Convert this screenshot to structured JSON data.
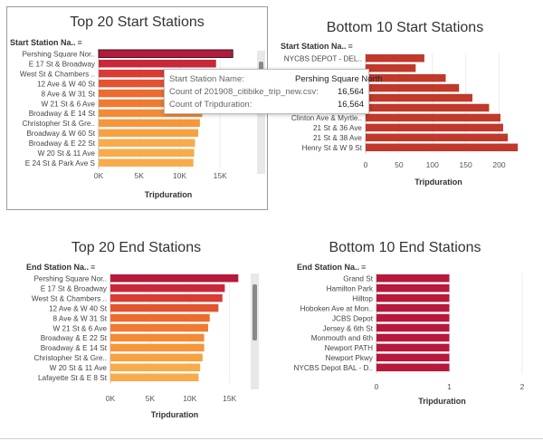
{
  "colors": {
    "ramp": [
      "#b8183c",
      "#c9283b",
      "#d83c34",
      "#e4532f",
      "#ec6b2f",
      "#f07a30",
      "#f38a36",
      "#f5963c",
      "#f7a143",
      "#f8ab4b"
    ],
    "crimson": "#b8183c",
    "brick": "#c0392b",
    "highlight_stroke": "#222222"
  },
  "panels": [
    {
      "id": "top-start",
      "title": "Top 20 Start Stations",
      "header_label": "Start Station Na..",
      "sort_icon": "sort-descending-icon",
      "selected": true,
      "tooltip": {
        "rows": [
          {
            "label": "Start Station Name:",
            "value": "Pershing Square North"
          },
          {
            "label": "Count of 201908_citibike_trip_new.csv:",
            "value": "16,564"
          },
          {
            "label": "Count of Tripduration:",
            "value": "16,564"
          }
        ]
      },
      "chart_data": {
        "type": "bar",
        "orientation": "horizontal",
        "categories": [
          "Pershing Square Nor..",
          "E 17 St & Broadway",
          "West St & Chambers ..",
          "12 Ave & W 40 St",
          "8 Ave & W 31 St",
          "W 21 St & 6 Ave",
          "Broadway & E 14 St",
          "Christopher St & Gre..",
          "Broadway & W 60 St",
          "Broadway & E 22 St",
          "W 20 St & 11 Ave",
          "E 24 St & Park Ave S"
        ],
        "values": [
          16564,
          14500,
          14400,
          13900,
          13500,
          13000,
          12800,
          12500,
          12300,
          11900,
          11800,
          11700
        ],
        "xlabel": "Tripduration",
        "xlim": [
          0,
          19000
        ],
        "ticks": [
          0,
          5000,
          10000,
          15000
        ],
        "tick_labels": [
          "0K",
          "5K",
          "10K",
          "15K"
        ]
      }
    },
    {
      "id": "bottom-start",
      "title": "Bottom 10 Start Stations",
      "header_label": "Start Station Na..",
      "sort_icon": "sort-ascending-icon",
      "selected": false,
      "chart_data": {
        "type": "bar",
        "orientation": "horizontal",
        "categories": [
          "NYCBS DEPOT - DEL..",
          "",
          "",
          "",
          "",
          "",
          "Clinton Ave & Myrtle..",
          "21 St & 36 Ave",
          "21 St & 38 Ave",
          "Henry St & W 9 St"
        ],
        "values": [
          88,
          75,
          120,
          140,
          160,
          185,
          202,
          206,
          213,
          228
        ],
        "xlabel": "Tripduration",
        "xlim": [
          0,
          240
        ],
        "ticks": [
          0,
          50,
          100,
          150,
          200
        ],
        "tick_labels": [
          "0",
          "50",
          "100",
          "150",
          "200"
        ]
      }
    },
    {
      "id": "top-end",
      "title": "Top 20 End Stations",
      "header_label": "End Station Na..",
      "sort_icon": "sort-descending-icon",
      "selected": false,
      "chart_data": {
        "type": "bar",
        "orientation": "horizontal",
        "categories": [
          "Pershing Square Nor..",
          "E 17 St & Broadway",
          "West St & Chambers ..",
          "12 Ave & W 40 St",
          "8 Ave & W 31 St",
          "W 21 St & 6 Ave",
          "Broadway & E 22 St",
          "Broadway & E 14 St",
          "Christopher St & Gre..",
          "W 20 St & 11 Ave",
          "Lafayette St & E 8 St"
        ],
        "values": [
          16100,
          14400,
          14100,
          13600,
          12500,
          12300,
          11800,
          11800,
          11600,
          11300,
          11100
        ],
        "xlabel": "Tripduration",
        "xlim": [
          0,
          18000
        ],
        "ticks": [
          0,
          5000,
          10000,
          15000
        ],
        "tick_labels": [
          "0K",
          "5K",
          "10K",
          "15K"
        ]
      }
    },
    {
      "id": "bottom-end",
      "title": "Bottom 10 End Stations",
      "header_label": "End Station Na..",
      "sort_icon": "sort-ascending-icon",
      "selected": false,
      "chart_data": {
        "type": "bar",
        "orientation": "horizontal",
        "categories": [
          "Grand St",
          "Hamilton Park",
          "Hilltop",
          "Hoboken Ave at Mon..",
          "JCBS Depot",
          "Jersey & 6th St",
          "Monmouth and 6th",
          "Newport PATH",
          "Newport Pkwy",
          "NYCBS Depot BAL - D.."
        ],
        "values": [
          1,
          1,
          1,
          1,
          1,
          1,
          1,
          1,
          1,
          1
        ],
        "xlabel": "Tripduration",
        "xlim": [
          0,
          2
        ],
        "ticks": [
          0,
          1,
          2
        ],
        "tick_labels": [
          "0",
          "1",
          "2"
        ]
      }
    }
  ]
}
